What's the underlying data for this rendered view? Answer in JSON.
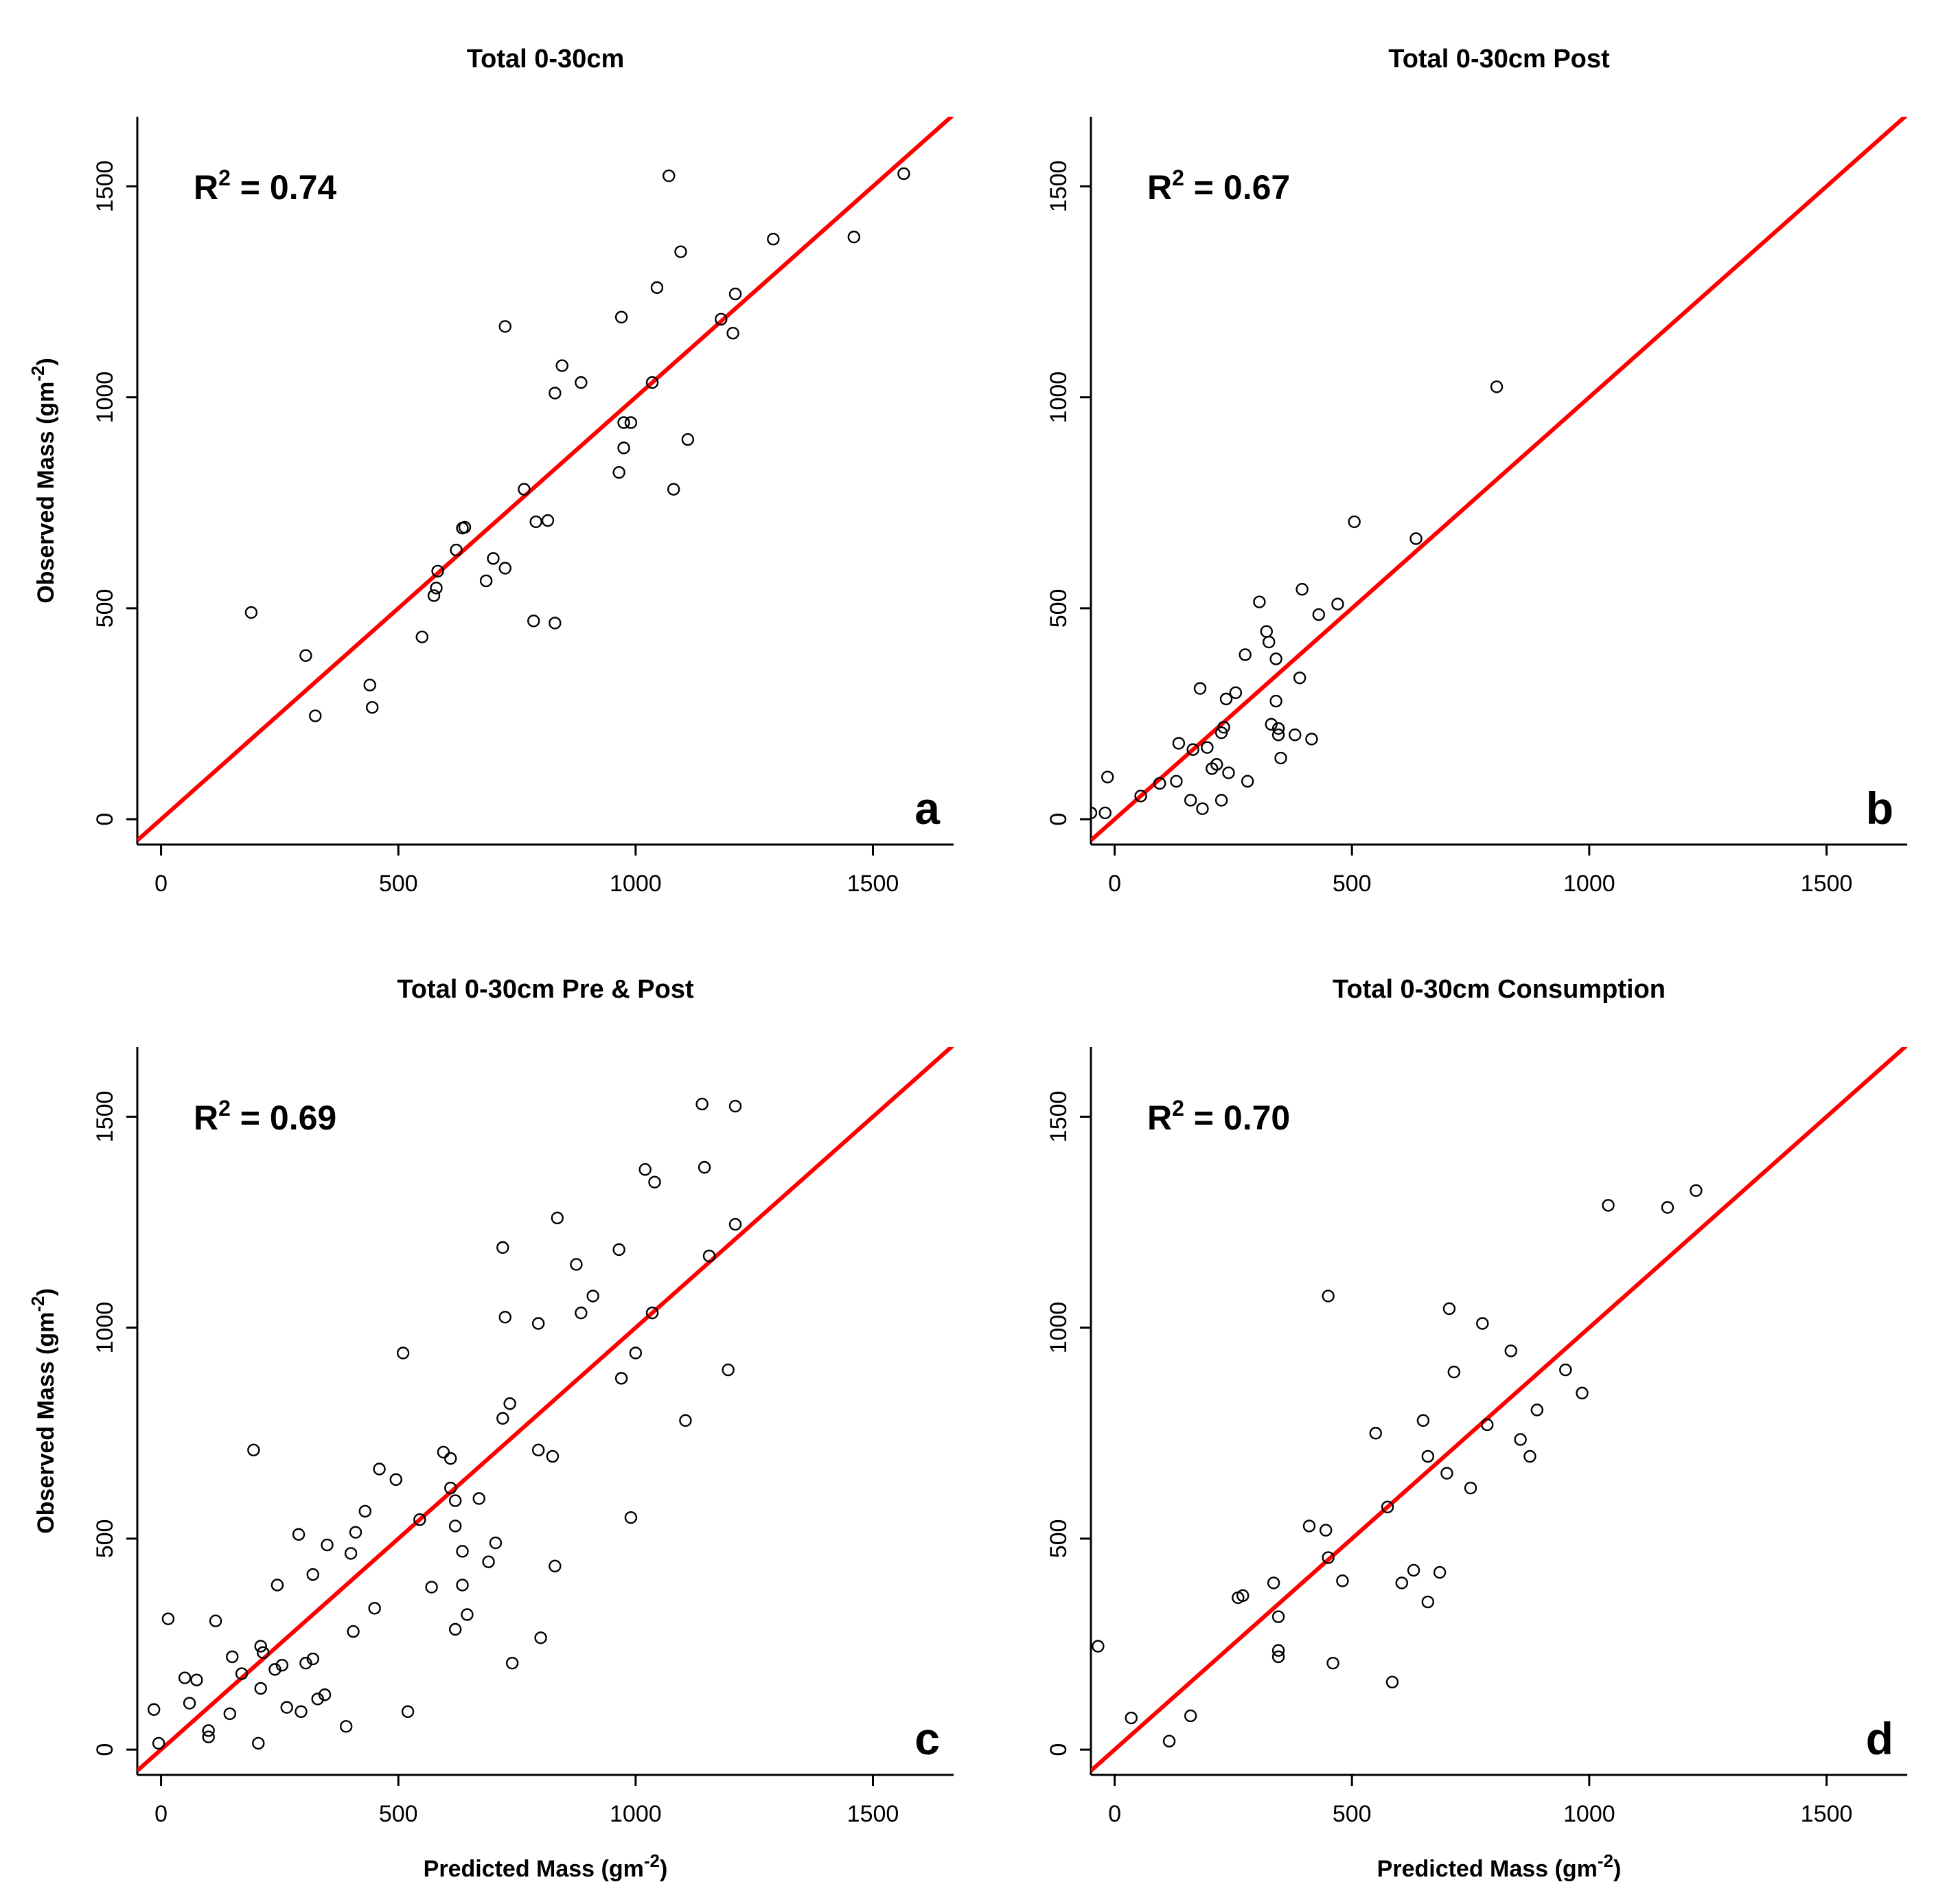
{
  "colors": {
    "line": "#ff0000",
    "point": "#000000",
    "axis": "#000000",
    "background": "#ffffff"
  },
  "chart_data": [
    {
      "type": "scatter",
      "panel_label": "a",
      "title": "Total 0-30cm",
      "r2_label": "R",
      "r2_sup": "2",
      "r2_value": " = 0.74",
      "xlabel_main": "Predicted Mass (gm",
      "xlabel_sup": "-2",
      "xlabel_end": ")",
      "ylabel_main": "Observed Mass (gm",
      "ylabel_sup": "-2",
      "ylabel_end": ")",
      "show_xlabel": false,
      "show_ylabel": true,
      "xlim": [
        -50,
        1670
      ],
      "ylim": [
        -60,
        1665
      ],
      "xticks": [
        0,
        500,
        1000,
        1500
      ],
      "yticks": [
        0,
        500,
        1000,
        1500
      ],
      "fit_line": {
        "slope": 1,
        "intercept": 0
      },
      "points": [
        [
          190,
          490
        ],
        [
          305,
          388
        ],
        [
          325,
          245
        ],
        [
          440,
          318
        ],
        [
          445,
          265
        ],
        [
          550,
          432
        ],
        [
          575,
          530
        ],
        [
          580,
          548
        ],
        [
          583,
          588
        ],
        [
          622,
          638
        ],
        [
          635,
          690
        ],
        [
          640,
          692
        ],
        [
          685,
          565
        ],
        [
          700,
          618
        ],
        [
          725,
          595
        ],
        [
          725,
          1168
        ],
        [
          765,
          782
        ],
        [
          785,
          470
        ],
        [
          790,
          705
        ],
        [
          815,
          708
        ],
        [
          830,
          465
        ],
        [
          830,
          1010
        ],
        [
          845,
          1075
        ],
        [
          885,
          1035
        ],
        [
          965,
          822
        ],
        [
          970,
          1190
        ],
        [
          975,
          880
        ],
        [
          975,
          940
        ],
        [
          990,
          940
        ],
        [
          1035,
          1035
        ],
        [
          1045,
          1260
        ],
        [
          1070,
          1525
        ],
        [
          1080,
          782
        ],
        [
          1095,
          1345
        ],
        [
          1110,
          900
        ],
        [
          1180,
          1185
        ],
        [
          1205,
          1152
        ],
        [
          1210,
          1245
        ],
        [
          1290,
          1375
        ],
        [
          1460,
          1380
        ],
        [
          1565,
          1530
        ]
      ]
    },
    {
      "type": "scatter",
      "panel_label": "b",
      "title": "Total 0-30cm Post",
      "r2_label": "R",
      "r2_sup": "2",
      "r2_value": " = 0.67",
      "xlabel_main": "Predicted Mass (gm",
      "xlabel_sup": "-2",
      "xlabel_end": ")",
      "ylabel_main": "Observed Mass (gm",
      "ylabel_sup": "-2",
      "ylabel_end": ")",
      "show_xlabel": false,
      "show_ylabel": false,
      "xlim": [
        -50,
        1670
      ],
      "ylim": [
        -60,
        1665
      ],
      "xticks": [
        0,
        500,
        1000,
        1500
      ],
      "yticks": [
        0,
        500,
        1000,
        1500
      ],
      "fit_line": {
        "slope": 1,
        "intercept": 0
      },
      "points": [
        [
          -50,
          15
        ],
        [
          -20,
          15
        ],
        [
          -15,
          100
        ],
        [
          55,
          55
        ],
        [
          95,
          85
        ],
        [
          130,
          90
        ],
        [
          135,
          180
        ],
        [
          160,
          45
        ],
        [
          165,
          165
        ],
        [
          180,
          310
        ],
        [
          185,
          25
        ],
        [
          195,
          170
        ],
        [
          205,
          120
        ],
        [
          215,
          130
        ],
        [
          225,
          45
        ],
        [
          225,
          205
        ],
        [
          230,
          218
        ],
        [
          235,
          285
        ],
        [
          240,
          110
        ],
        [
          255,
          300
        ],
        [
          275,
          390
        ],
        [
          280,
          90
        ],
        [
          305,
          515
        ],
        [
          320,
          445
        ],
        [
          325,
          420
        ],
        [
          330,
          225
        ],
        [
          340,
          380
        ],
        [
          340,
          280
        ],
        [
          345,
          200
        ],
        [
          345,
          215
        ],
        [
          350,
          145
        ],
        [
          380,
          200
        ],
        [
          390,
          335
        ],
        [
          395,
          545
        ],
        [
          415,
          190
        ],
        [
          430,
          485
        ],
        [
          470,
          510
        ],
        [
          505,
          705
        ],
        [
          635,
          665
        ],
        [
          805,
          1025
        ]
      ]
    },
    {
      "type": "scatter",
      "panel_label": "c",
      "title": "Total 0-30cm Pre & Post",
      "r2_label": "R",
      "r2_sup": "2",
      "r2_value": " = 0.69",
      "xlabel_main": "Predicted Mass (gm",
      "xlabel_sup": "-2",
      "xlabel_end": ")",
      "ylabel_main": "Observed Mass (gm",
      "ylabel_sup": "-2",
      "ylabel_end": ")",
      "show_xlabel": true,
      "show_ylabel": true,
      "xlim": [
        -50,
        1670
      ],
      "ylim": [
        -60,
        1665
      ],
      "xticks": [
        0,
        500,
        1000,
        1500
      ],
      "yticks": [
        0,
        500,
        1000,
        1500
      ],
      "fit_line": {
        "slope": 1,
        "intercept": 0
      },
      "points": [
        [
          -15,
          95
        ],
        [
          -5,
          15
        ],
        [
          15,
          310
        ],
        [
          50,
          170
        ],
        [
          60,
          110
        ],
        [
          75,
          165
        ],
        [
          100,
          45
        ],
        [
          100,
          30
        ],
        [
          115,
          305
        ],
        [
          145,
          85
        ],
        [
          150,
          220
        ],
        [
          170,
          180
        ],
        [
          195,
          710
        ],
        [
          205,
          15
        ],
        [
          210,
          145
        ],
        [
          210,
          245
        ],
        [
          215,
          230
        ],
        [
          240,
          190
        ],
        [
          245,
          390
        ],
        [
          255,
          200
        ],
        [
          265,
          100
        ],
        [
          290,
          510
        ],
        [
          295,
          90
        ],
        [
          305,
          205
        ],
        [
          320,
          415
        ],
        [
          320,
          215
        ],
        [
          330,
          120
        ],
        [
          345,
          130
        ],
        [
          350,
          485
        ],
        [
          390,
          55
        ],
        [
          400,
          465
        ],
        [
          405,
          280
        ],
        [
          410,
          515
        ],
        [
          430,
          565
        ],
        [
          450,
          335
        ],
        [
          460,
          665
        ],
        [
          495,
          640
        ],
        [
          510,
          940
        ],
        [
          520,
          90
        ],
        [
          545,
          545
        ],
        [
          570,
          385
        ],
        [
          595,
          705
        ],
        [
          610,
          690
        ],
        [
          610,
          620
        ],
        [
          620,
          590
        ],
        [
          620,
          530
        ],
        [
          620,
          285
        ],
        [
          635,
          470
        ],
        [
          635,
          390
        ],
        [
          645,
          320
        ],
        [
          670,
          595
        ],
        [
          690,
          445
        ],
        [
          705,
          490
        ],
        [
          720,
          1190
        ],
        [
          720,
          785
        ],
        [
          725,
          1025
        ],
        [
          735,
          820
        ],
        [
          740,
          205
        ],
        [
          795,
          1010
        ],
        [
          795,
          710
        ],
        [
          800,
          265
        ],
        [
          825,
          695
        ],
        [
          830,
          435
        ],
        [
          835,
          1260
        ],
        [
          875,
          1150
        ],
        [
          885,
          1035
        ],
        [
          910,
          1075
        ],
        [
          965,
          1185
        ],
        [
          970,
          880
        ],
        [
          990,
          550
        ],
        [
          1000,
          940
        ],
        [
          1020,
          1375
        ],
        [
          1035,
          1035
        ],
        [
          1040,
          1345
        ],
        [
          1105,
          780
        ],
        [
          1140,
          1530
        ],
        [
          1145,
          1380
        ],
        [
          1155,
          1170
        ],
        [
          1195,
          900
        ],
        [
          1210,
          1245
        ],
        [
          1210,
          1525
        ]
      ]
    },
    {
      "type": "scatter",
      "panel_label": "d",
      "title": "Total 0-30cm Consumption",
      "r2_label": "R",
      "r2_sup": "2",
      "r2_value": " = 0.70",
      "xlabel_main": "Predicted Mass (gm",
      "xlabel_sup": "-2",
      "xlabel_end": ")",
      "ylabel_main": "Observed Mass (gm",
      "ylabel_sup": "-2",
      "ylabel_end": ")",
      "show_xlabel": true,
      "show_ylabel": false,
      "xlim": [
        -50,
        1670
      ],
      "ylim": [
        -60,
        1665
      ],
      "xticks": [
        0,
        500,
        1000,
        1500
      ],
      "yticks": [
        0,
        500,
        1000,
        1500
      ],
      "fit_line": {
        "slope": 1,
        "intercept": 0
      },
      "points": [
        [
          -35,
          245
        ],
        [
          35,
          75
        ],
        [
          115,
          20
        ],
        [
          160,
          80
        ],
        [
          260,
          360
        ],
        [
          270,
          365
        ],
        [
          335,
          395
        ],
        [
          345,
          315
        ],
        [
          345,
          235
        ],
        [
          345,
          220
        ],
        [
          410,
          530
        ],
        [
          445,
          520
        ],
        [
          450,
          1075
        ],
        [
          450,
          455
        ],
        [
          460,
          205
        ],
        [
          480,
          400
        ],
        [
          550,
          750
        ],
        [
          575,
          575
        ],
        [
          585,
          160
        ],
        [
          605,
          395
        ],
        [
          630,
          425
        ],
        [
          650,
          780
        ],
        [
          660,
          350
        ],
        [
          660,
          695
        ],
        [
          685,
          420
        ],
        [
          700,
          655
        ],
        [
          705,
          1045
        ],
        [
          715,
          895
        ],
        [
          750,
          620
        ],
        [
          775,
          1010
        ],
        [
          785,
          770
        ],
        [
          835,
          945
        ],
        [
          855,
          735
        ],
        [
          875,
          695
        ],
        [
          890,
          805
        ],
        [
          950,
          900
        ],
        [
          985,
          845
        ],
        [
          1040,
          1290
        ],
        [
          1165,
          1285
        ],
        [
          1225,
          1325
        ]
      ]
    }
  ]
}
